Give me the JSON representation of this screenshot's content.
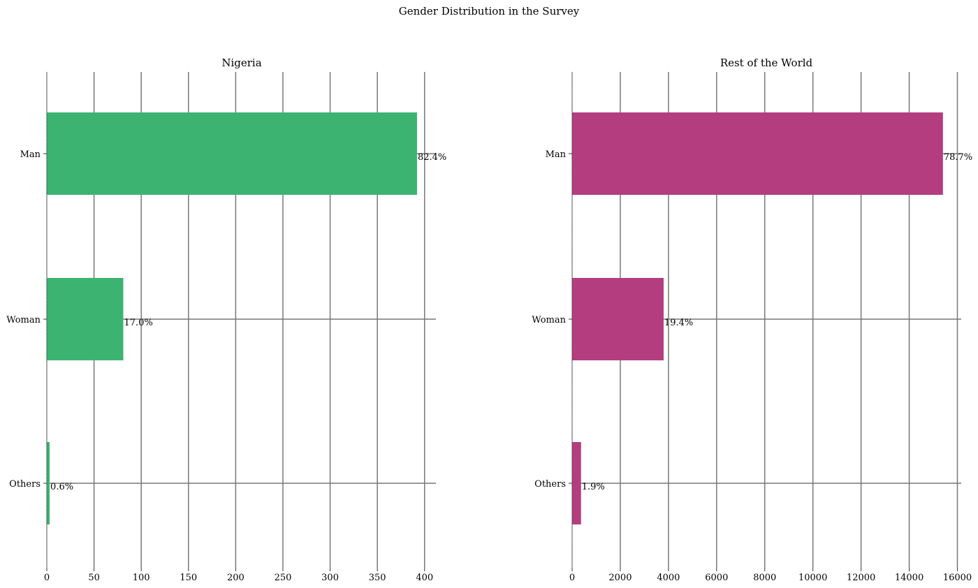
{
  "figure": {
    "title": "Gender Distribution in the Survey"
  },
  "colors": {
    "nigeria": "#3cb371",
    "rest": "#b33d7e",
    "grid": "#777777"
  },
  "chart_data": [
    {
      "type": "bar",
      "orientation": "horizontal",
      "title": "Nigeria",
      "color": "#3cb371",
      "categories": [
        "Man",
        "Woman",
        "Others"
      ],
      "values": [
        392,
        81,
        3
      ],
      "data_labels": [
        "82.4%",
        "17.0%",
        "0.6%"
      ],
      "xticks": [
        0,
        50,
        100,
        150,
        200,
        250,
        300,
        350,
        400
      ],
      "xlim": [
        0,
        412
      ],
      "xlabel": "",
      "ylabel": "",
      "grid": true
    },
    {
      "type": "bar",
      "orientation": "horizontal",
      "title": "Rest of the World",
      "color": "#b33d7e",
      "categories": [
        "Man",
        "Woman",
        "Others"
      ],
      "values": [
        15400,
        3800,
        370
      ],
      "data_labels": [
        "78.7%",
        "19.4%",
        "1.9%"
      ],
      "xticks": [
        0,
        2000,
        4000,
        6000,
        8000,
        10000,
        12000,
        14000,
        16000
      ],
      "xlim": [
        0,
        16160
      ],
      "xlabel": "",
      "ylabel": "",
      "grid": true
    }
  ]
}
